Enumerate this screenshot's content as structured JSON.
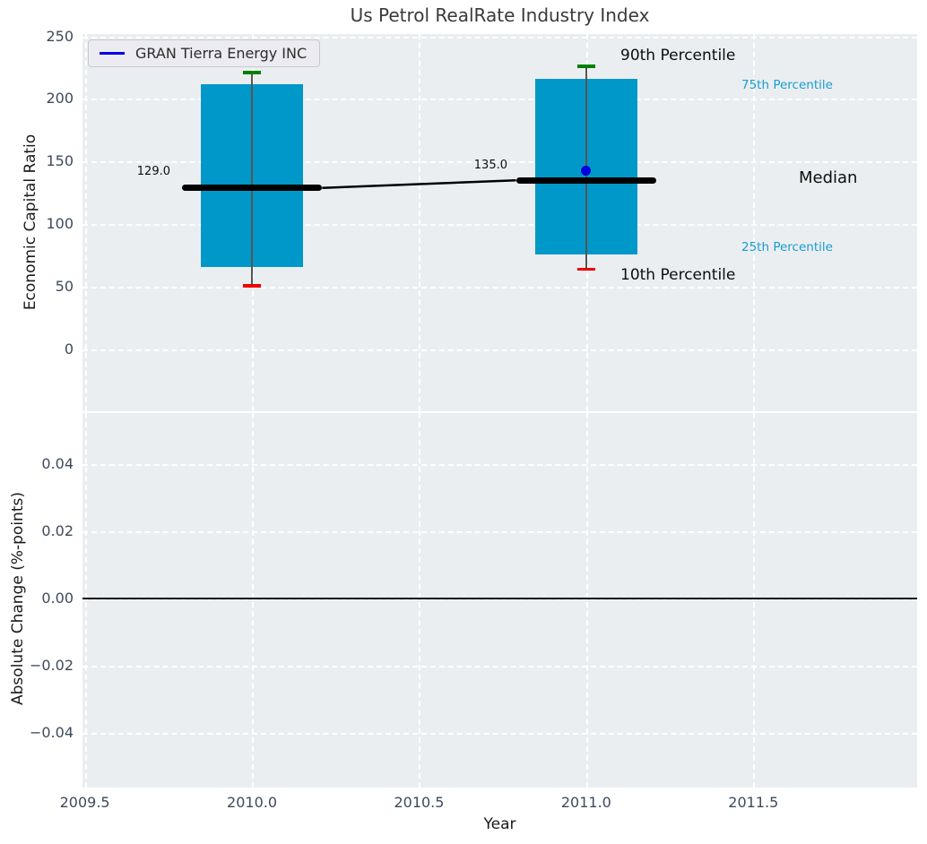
{
  "chart_data": [
    {
      "type": "bar",
      "subtype": "industry-percentile-bars",
      "title": "Us Petrol RealRate Industry Index",
      "ylabel": "Economic Capital Ratio",
      "legend_label": "GRAN Tierra Energy INC",
      "legend_position": "upper left",
      "grid": true,
      "xlim": [
        2009.493,
        2011.99
      ],
      "ylim": [
        -49.3,
        251.8
      ],
      "bar_half_width_years": 0.153,
      "median_half_width_years": 0.21,
      "cap_half_width_years": 0.027,
      "xticks": [
        {
          "value": 2009.5,
          "label": "2009.5"
        },
        {
          "value": 2010.0,
          "label": "2010.0"
        },
        {
          "value": 2010.5,
          "label": "2010.5"
        },
        {
          "value": 2011.0,
          "label": "2011.0"
        },
        {
          "value": 2011.5,
          "label": "2011.5"
        }
      ],
      "yticks": [
        {
          "value": 250,
          "label": "250"
        },
        {
          "value": 200,
          "label": "200"
        },
        {
          "value": 150,
          "label": "150"
        },
        {
          "value": 100,
          "label": "100"
        },
        {
          "value": 50,
          "label": "50"
        },
        {
          "value": 0,
          "label": "0"
        }
      ],
      "series": [
        {
          "year": 2010,
          "p10": 51,
          "p25": 66,
          "median": 129,
          "p75": 212,
          "p90": 221,
          "median_label": "129.0"
        },
        {
          "year": 2011,
          "p10": 64,
          "p25": 76,
          "median": 135,
          "p75": 216,
          "p90": 226,
          "median_label": "135.0",
          "company_value": 143
        }
      ],
      "annotations": {
        "p90": "90th Percentile",
        "p75": "75th Percentile",
        "median": "Median",
        "p25": "25th Percentile",
        "p10": "10th Percentile"
      },
      "colors": {
        "bar": "#0098c9",
        "p90_cap": "#008000",
        "p10_cap": "#ee0000",
        "median_line": "#000000",
        "company_marker": "#0000dd",
        "percentile_text": "#169cd3",
        "axes_bg": "#ebeef0",
        "grid": "#ffffff",
        "tick_text": "#3e4a5c"
      }
    },
    {
      "type": "line",
      "ylabel": "Absolute Change (%-points)",
      "xlabel": "Year",
      "grid": true,
      "ylim": [
        -0.0563,
        0.0552
      ],
      "yticks": [
        {
          "value": 0.04,
          "label": "0.04"
        },
        {
          "value": 0.02,
          "label": "0.02"
        },
        {
          "value": 0,
          "label": "0.00"
        },
        {
          "value": -0.02,
          "label": "−0.02"
        },
        {
          "value": -0.04,
          "label": "−0.04"
        }
      ],
      "zero_line": 0.0,
      "series": []
    }
  ]
}
